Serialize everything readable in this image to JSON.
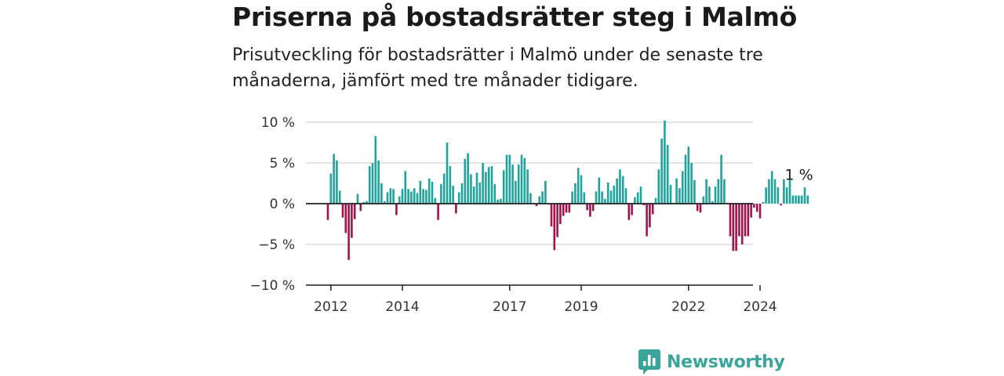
{
  "header": {
    "title": "Priserna på bostadsrätter steg i Malmö",
    "subtitle": "Prisutveckling för bostadsrätter i Malmö under de senaste tre månaderna, jämfört med tre månader tidigare."
  },
  "brand": {
    "name": "Newsworthy"
  },
  "chart_data": {
    "type": "bar",
    "title": "Priserna på bostadsrätter steg i Malmö",
    "subtitle": "Prisutveckling för bostadsrätter i Malmö under de senaste tre månaderna, jämfört med tre månader tidigare.",
    "y_unit": "%",
    "ylim": [
      -10,
      10
    ],
    "y_ticks": [
      10,
      5,
      0,
      -5,
      -10
    ],
    "y_tick_labels": [
      "10 %",
      "5 %",
      "0 %",
      "−5 %",
      "−10 %"
    ],
    "x_start": "2011-12",
    "x_end": "2025-01",
    "x_ticks": [
      "2012",
      "2014",
      "2017",
      "2019",
      "2022",
      "2024"
    ],
    "x_tick_dates": [
      "2012-01",
      "2014-01",
      "2017-01",
      "2019-01",
      "2022-01",
      "2024-01"
    ],
    "annotation": {
      "text": "1 %",
      "date": "2025-01"
    },
    "colors": {
      "positive": "#1fa39a",
      "negative": "#a3124a",
      "grid": "#dcdcdc",
      "zero_line": "#222222"
    },
    "grid": true,
    "values": [
      -2,
      3.7,
      6.1,
      5.3,
      1.6,
      -1.7,
      -3.6,
      -6.9,
      -4.2,
      -1.9,
      1.2,
      -0.9,
      0.2,
      0.3,
      4.6,
      5,
      8.3,
      5.3,
      2.5,
      0.3,
      1.4,
      1.9,
      1.8,
      -1.4,
      0.9,
      1.8,
      4,
      1.8,
      1.5,
      1.9,
      1.3,
      2.8,
      1.8,
      1.7,
      3.1,
      2.7,
      0.7,
      -2,
      2.4,
      3.7,
      7.5,
      4.6,
      2.2,
      -1.2,
      1.4,
      2.5,
      5.5,
      6.2,
      3.6,
      2.1,
      3.8,
      2.6,
      5,
      3.9,
      4.5,
      4.6,
      2.4,
      0.5,
      0.6,
      4.1,
      6,
      6,
      4.8,
      2.8,
      4.8,
      6,
      5.6,
      4.2,
      1.3,
      0.1,
      -0.3,
      0.9,
      1.5,
      2.8,
      -0.1,
      -2.8,
      -5.7,
      -4.1,
      -2.5,
      -1.5,
      -1.1,
      -1.1,
      1.5,
      2.5,
      4.4,
      3.5,
      1.4,
      -0.8,
      -1.6,
      -0.9,
      1.5,
      3.2,
      1.5,
      0.6,
      2.6,
      1.6,
      2.2,
      3.1,
      4.2,
      3.4,
      1.9,
      -2,
      -1.4,
      0.8,
      1.4,
      2.1,
      -0.2,
      -4,
      -2.9,
      -1.3,
      0.7,
      4.2,
      8,
      10.2,
      7.2,
      2.3,
      0.1,
      3.1,
      1.9,
      4,
      6,
      7,
      5,
      2.9,
      -0.9,
      -1.1,
      0.9,
      3,
      2.1,
      0.3,
      2.1,
      3,
      6,
      3,
      0.1,
      -4,
      -5.8,
      -5.8,
      -4,
      -5,
      -4,
      -4,
      -1.7,
      -0.5,
      -1,
      -1.8,
      0.2,
      2,
      3,
      4,
      3,
      2,
      -0.2,
      3,
      2,
      3,
      1,
      1,
      1,
      1,
      2,
      1
    ]
  }
}
